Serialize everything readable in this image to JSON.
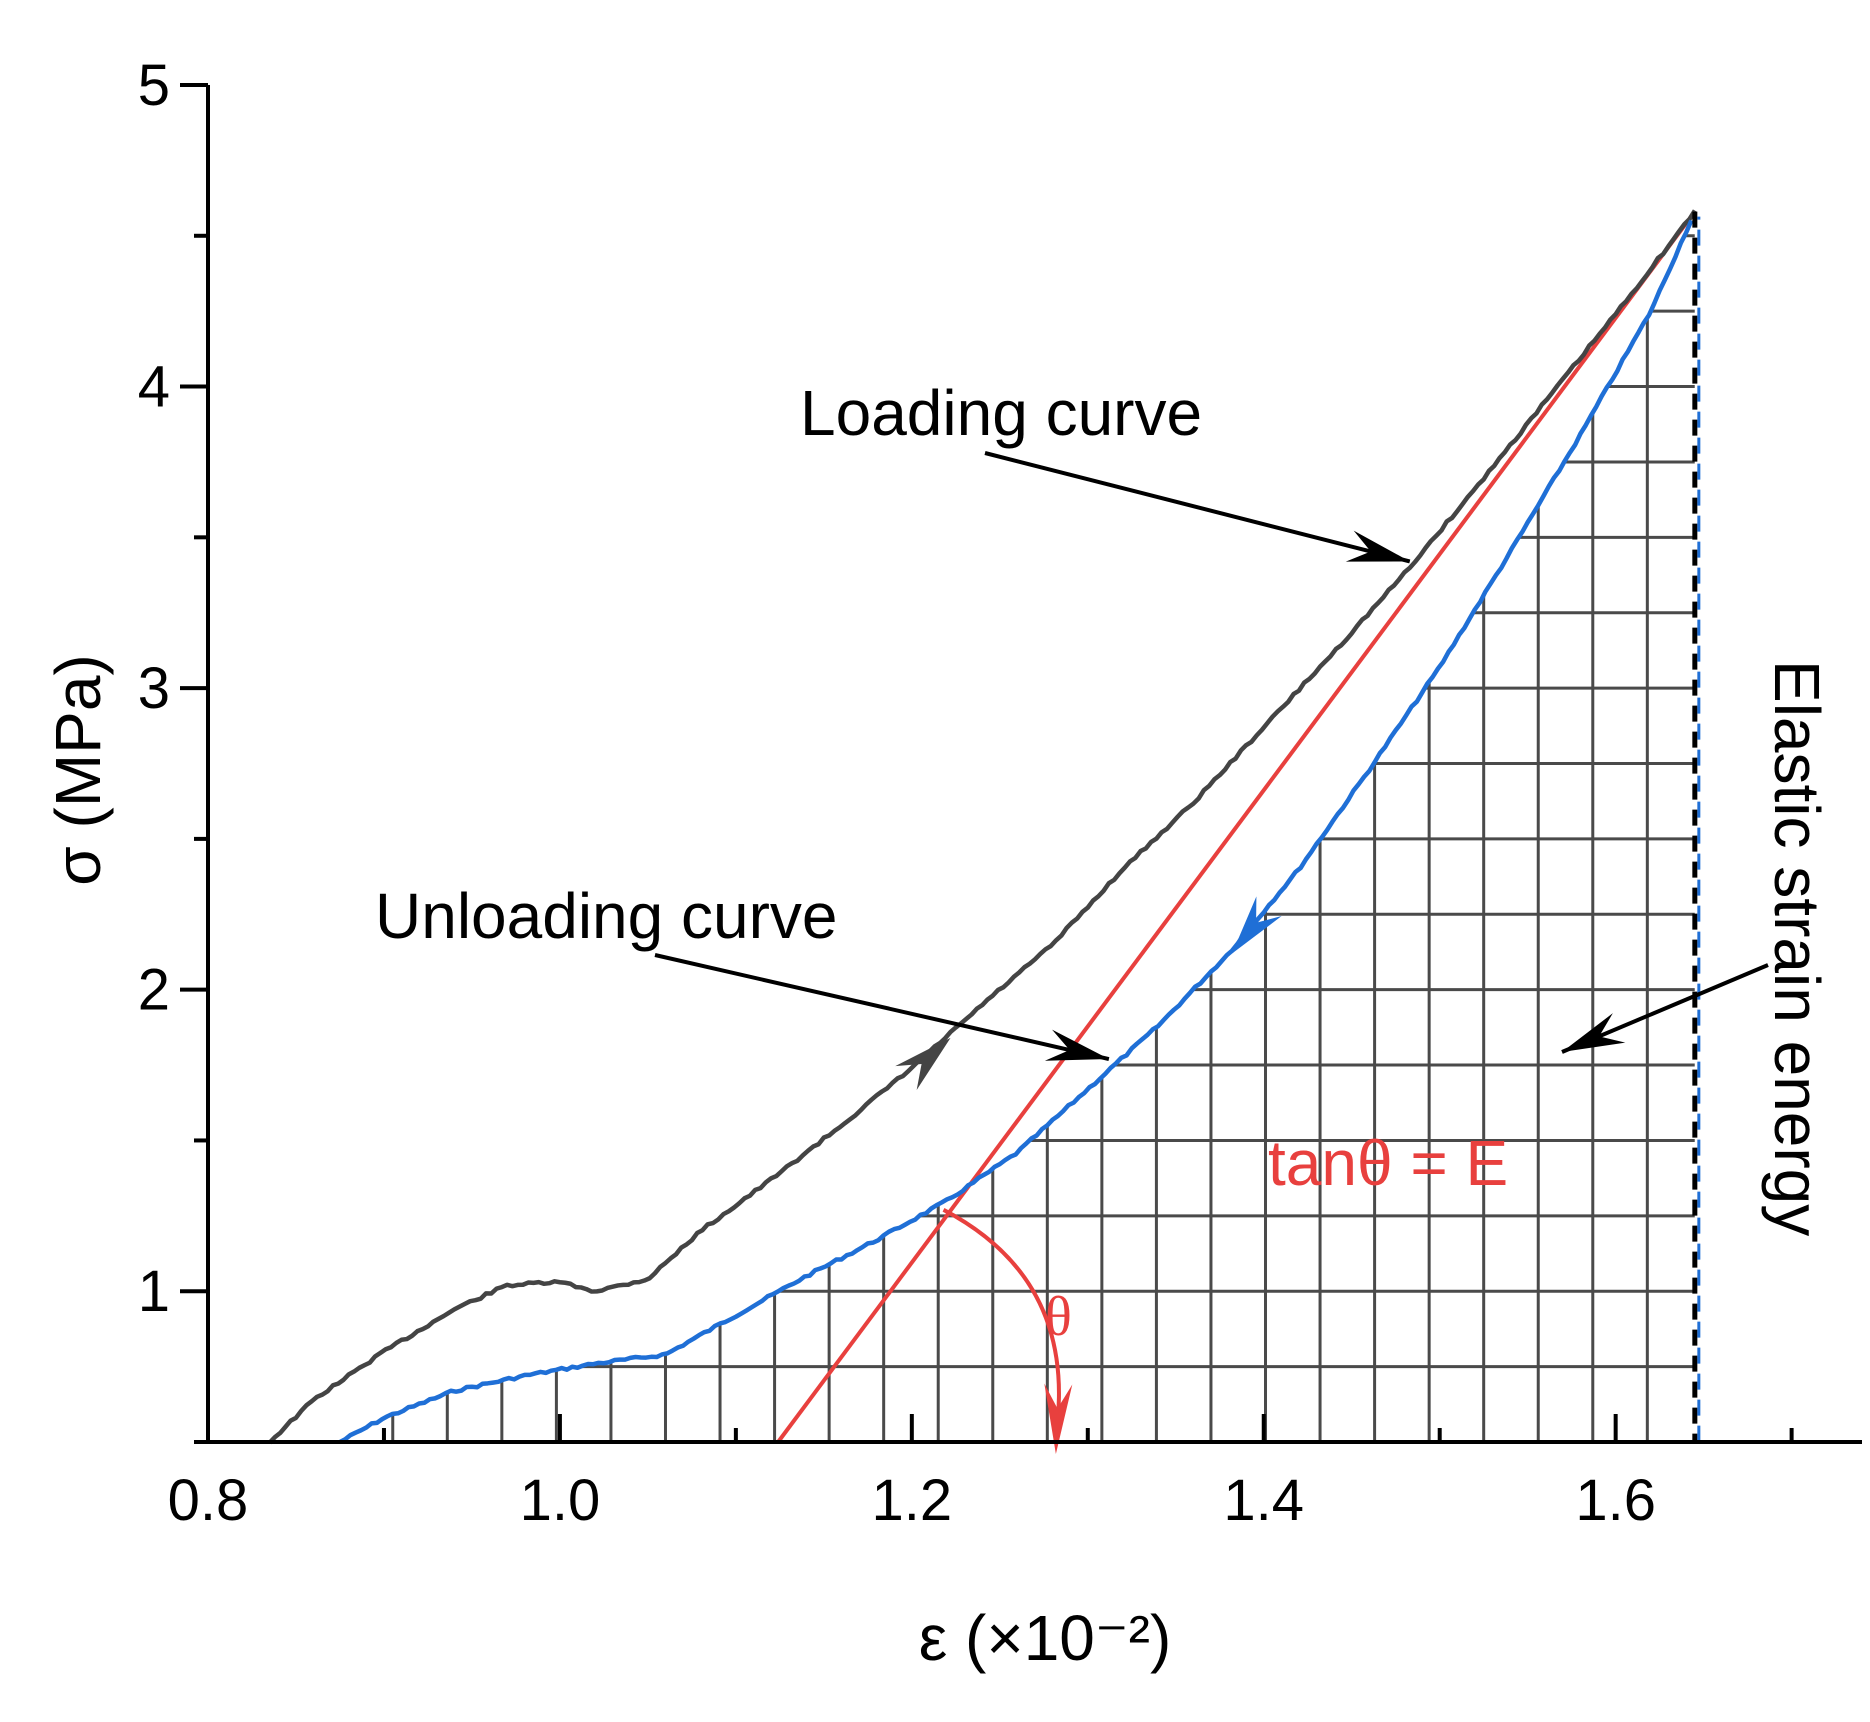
{
  "chart_data": {
    "type": "line",
    "title": "",
    "xlabel": "ε (×10⁻²)",
    "ylabel": "σ (MPa)",
    "xlim": [
      0.8,
      1.74
    ],
    "ylim": [
      0.5,
      5.0
    ],
    "x_ticks": [
      0.8,
      1.0,
      1.2,
      1.4,
      1.6
    ],
    "x_tick_labels": [
      "0.8",
      "1.0",
      "1.2",
      "1.4",
      "1.6"
    ],
    "y_ticks": [
      1,
      2,
      3,
      4,
      5
    ],
    "y_tick_labels": [
      "1",
      "2",
      "3",
      "4",
      "5"
    ],
    "series": [
      {
        "name": "Loading curve",
        "color": "#444444",
        "x": [
          0.835,
          0.86,
          0.9,
          0.94,
          0.97,
          1.0,
          1.02,
          1.05,
          1.08,
          1.12,
          1.16,
          1.2,
          1.24,
          1.28,
          1.32,
          1.36,
          1.4,
          1.44,
          1.48,
          1.52,
          1.56,
          1.6,
          1.645
        ],
        "y": [
          0.5,
          0.64,
          0.8,
          0.94,
          1.02,
          1.03,
          1.0,
          1.04,
          1.2,
          1.37,
          1.55,
          1.74,
          1.95,
          2.15,
          2.4,
          2.62,
          2.87,
          3.12,
          3.38,
          3.66,
          3.95,
          4.24,
          4.58
        ]
      },
      {
        "name": "Unloading curve",
        "color": "#1f6fd6",
        "x": [
          0.875,
          0.9,
          0.94,
          0.98,
          1.02,
          1.06,
          1.1,
          1.14,
          1.18,
          1.22,
          1.26,
          1.3,
          1.34,
          1.38,
          1.42,
          1.46,
          1.5,
          1.54,
          1.58,
          1.62,
          1.645
        ],
        "y": [
          0.5,
          0.58,
          0.67,
          0.72,
          0.76,
          0.79,
          0.92,
          1.05,
          1.17,
          1.3,
          1.46,
          1.67,
          1.88,
          2.12,
          2.4,
          2.73,
          3.07,
          3.45,
          3.84,
          4.25,
          4.58
        ]
      },
      {
        "name": "Tangent (tanθ = E)",
        "color": "#e8403e",
        "x": [
          1.124,
          1.645
        ],
        "y": [
          0.5,
          4.58
        ]
      }
    ],
    "peak": {
      "x": 1.645,
      "y": 4.58
    },
    "annotations": {
      "loading": "Loading curve",
      "unloading": "Unloading curve",
      "elastic": "Elastic strain energy",
      "modulus": "tanθ = E",
      "angle": "θ"
    },
    "grid_region": {
      "x_step": 0.031,
      "y_step": 0.25
    },
    "colors": {
      "axis": "#000000",
      "grid": "#4a4a4a",
      "loading": "#444444",
      "unloading": "#1f6fd6",
      "tangent": "#e8403e",
      "arrow": "#000000"
    }
  }
}
